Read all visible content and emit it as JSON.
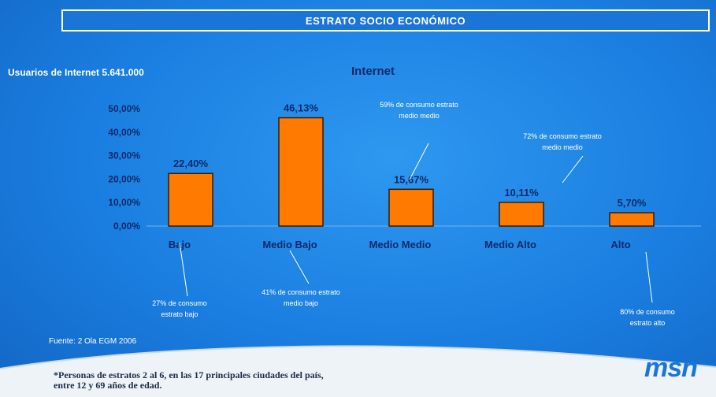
{
  "header": {
    "title": "ESTRATO SOCIO ECONÓMICO"
  },
  "subtitle_left": "Usuarios de Internet 5.641.000",
  "chart_data": {
    "type": "bar",
    "title": "Internet",
    "categories": [
      "Bajo",
      "Medio Bajo",
      "Medio Medio",
      "Medio Alto",
      "Alto"
    ],
    "values": [
      22.4,
      46.13,
      15.67,
      10.11,
      5.7
    ],
    "value_labels": [
      "22,40%",
      "46,13%",
      "15,67%",
      "10,11%",
      "5,70%"
    ],
    "ylim": [
      0,
      50
    ],
    "y_ticks": [
      0,
      10,
      20,
      30,
      40,
      50
    ],
    "y_tick_labels": [
      "0,00%",
      "10,00%",
      "20,00%",
      "30,00%",
      "40,00%",
      "50,00%"
    ],
    "bar_color": "#ff7a00",
    "annotations": [
      {
        "lines": [
          "27% de consumo",
          "estrato bajo"
        ]
      },
      {
        "lines": [
          "41% de consumo estrato",
          "medio bajo"
        ]
      },
      {
        "lines": [
          "59% de consumo estrato",
          "medio medio"
        ]
      },
      {
        "lines": [
          "72% de consumo estrato",
          "medio medio"
        ]
      },
      {
        "lines": [
          "80% de consumo",
          "estrato alto"
        ]
      }
    ]
  },
  "source": "Fuente: 2 Ola EGM 2006",
  "footnote": {
    "line1": "*Personas de estratos 2 al 6, en las 17 principales ciudades del país,",
    "line2": "entre 12 y 69 años de edad."
  },
  "logo": "msn",
  "colors": {
    "background": "#1a7ee0",
    "bar": "#ff7a00",
    "text_dark": "#0b2a6b"
  }
}
